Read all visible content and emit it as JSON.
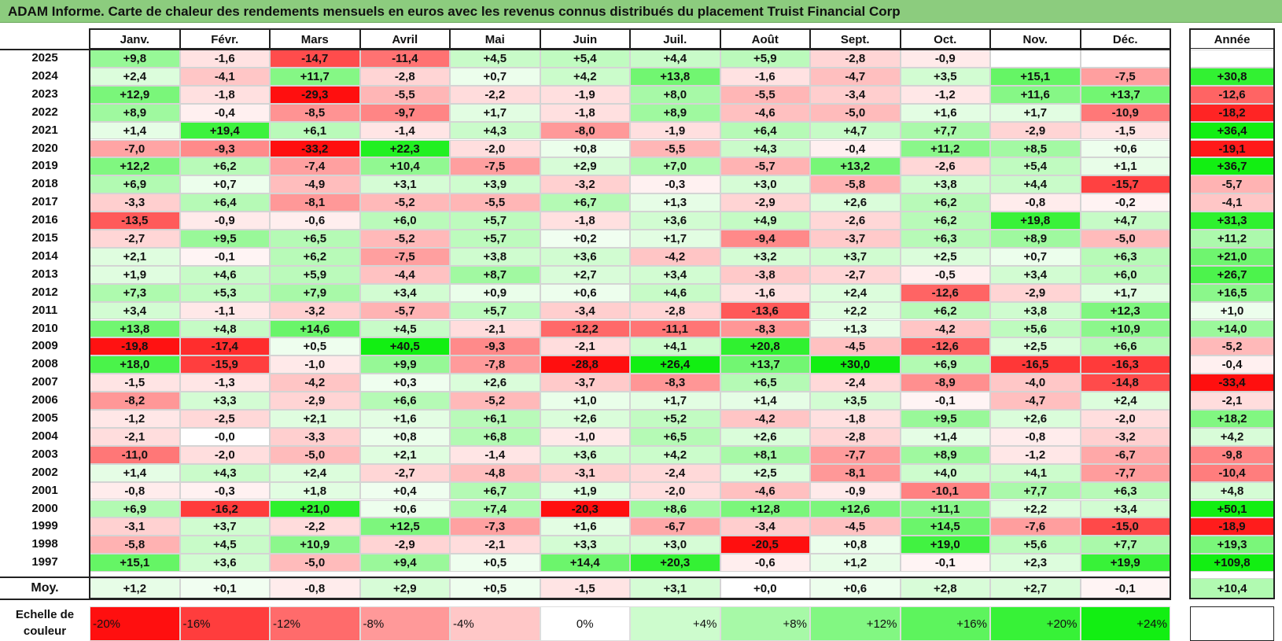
{
  "title": "ADAM Informe. Carte de chaleur des rendements mensuels en euros avec les revenus connus distribués du placement Truist Financial Corp",
  "chart_data": {
    "type": "heatmap",
    "columns": [
      "Janv.",
      "Févr.",
      "Mars",
      "Avril",
      "Mai",
      "Juin",
      "Juil.",
      "Août",
      "Sept.",
      "Oct.",
      "Nov.",
      "Déc."
    ],
    "year_column_label": "Année",
    "rows": [
      {
        "year": "2025",
        "values": [
          9.8,
          -1.6,
          -14.7,
          -11.4,
          4.5,
          5.4,
          4.4,
          5.9,
          -2.8,
          -0.9,
          null,
          null
        ],
        "annual": null
      },
      {
        "year": "2024",
        "values": [
          2.4,
          -4.1,
          11.7,
          -2.8,
          0.7,
          4.2,
          13.8,
          -1.6,
          -4.7,
          3.5,
          15.1,
          -7.5
        ],
        "annual": 30.8
      },
      {
        "year": "2023",
        "values": [
          12.9,
          -1.8,
          -29.3,
          -5.5,
          -2.2,
          -1.9,
          8.0,
          -5.5,
          -3.4,
          -1.2,
          11.6,
          13.7
        ],
        "annual": -12.6
      },
      {
        "year": "2022",
        "values": [
          8.9,
          -0.4,
          -8.5,
          -9.7,
          1.7,
          -1.8,
          8.9,
          -4.6,
          -5.0,
          1.6,
          1.7,
          -10.9
        ],
        "annual": -18.2
      },
      {
        "year": "2021",
        "values": [
          1.4,
          19.4,
          6.1,
          -1.4,
          4.3,
          -8.0,
          -1.9,
          6.4,
          4.7,
          7.7,
          -2.9,
          -1.5
        ],
        "annual": 36.4
      },
      {
        "year": "2020",
        "values": [
          -7.0,
          -9.3,
          -33.2,
          22.3,
          -2.0,
          0.8,
          -5.5,
          4.3,
          -0.4,
          11.2,
          8.5,
          0.6
        ],
        "annual": -19.1
      },
      {
        "year": "2019",
        "values": [
          12.2,
          6.2,
          -7.4,
          10.4,
          -7.5,
          2.9,
          7.0,
          -5.7,
          13.2,
          -2.6,
          5.4,
          1.1
        ],
        "annual": 36.7
      },
      {
        "year": "2018",
        "values": [
          6.9,
          0.7,
          -4.9,
          3.1,
          3.9,
          -3.2,
          -0.3,
          3.0,
          -5.8,
          3.8,
          4.4,
          -15.7
        ],
        "annual": -5.7
      },
      {
        "year": "2017",
        "values": [
          -3.3,
          6.4,
          -8.1,
          -5.2,
          -5.5,
          6.7,
          1.3,
          -2.9,
          2.6,
          6.2,
          -0.8,
          -0.2
        ],
        "annual": -4.1
      },
      {
        "year": "2016",
        "values": [
          -13.5,
          -0.9,
          -0.6,
          6.0,
          5.7,
          -1.8,
          3.6,
          4.9,
          -2.6,
          6.2,
          19.8,
          4.7
        ],
        "annual": 31.3
      },
      {
        "year": "2015",
        "values": [
          -2.7,
          9.5,
          6.5,
          -5.2,
          5.7,
          0.2,
          1.7,
          -9.4,
          -3.7,
          6.3,
          8.9,
          -5.0
        ],
        "annual": 11.2
      },
      {
        "year": "2014",
        "values": [
          2.1,
          -0.1,
          6.2,
          -7.5,
          3.8,
          3.6,
          -4.2,
          3.2,
          3.7,
          2.5,
          0.7,
          6.3
        ],
        "annual": 21.0
      },
      {
        "year": "2013",
        "values": [
          1.9,
          4.6,
          5.9,
          -4.4,
          8.7,
          2.7,
          3.4,
          -3.8,
          -2.7,
          -0.5,
          3.4,
          6.0
        ],
        "annual": 26.7
      },
      {
        "year": "2012",
        "values": [
          7.3,
          5.3,
          7.9,
          3.4,
          0.9,
          0.6,
          4.6,
          -1.6,
          2.4,
          -12.6,
          -2.9,
          1.7
        ],
        "annual": 16.5
      },
      {
        "year": "2011",
        "values": [
          3.4,
          -1.1,
          -3.2,
          -5.7,
          5.7,
          -3.4,
          -2.8,
          -13.6,
          2.2,
          6.2,
          3.8,
          12.3
        ],
        "annual": 1.0
      },
      {
        "year": "2010",
        "values": [
          13.8,
          4.8,
          14.6,
          4.5,
          -2.1,
          -12.2,
          -11.1,
          -8.3,
          1.3,
          -4.2,
          5.6,
          10.9
        ],
        "annual": 14.0
      },
      {
        "year": "2009",
        "values": [
          -19.8,
          -17.4,
          0.5,
          40.5,
          -9.3,
          -2.1,
          4.1,
          20.8,
          -4.5,
          -12.6,
          2.5,
          6.6
        ],
        "annual": -5.2
      },
      {
        "year": "2008",
        "values": [
          18.0,
          -15.9,
          -1.0,
          9.9,
          -7.8,
          -28.8,
          26.4,
          13.7,
          30.0,
          6.9,
          -16.5,
          -16.3
        ],
        "annual": -0.4
      },
      {
        "year": "2007",
        "values": [
          -1.5,
          -1.3,
          -4.2,
          0.3,
          2.6,
          -3.7,
          -8.3,
          6.5,
          -2.4,
          -8.9,
          -4.0,
          -14.8
        ],
        "annual": -33.4
      },
      {
        "year": "2006",
        "values": [
          -8.2,
          3.3,
          -2.9,
          6.6,
          -5.2,
          1.0,
          1.7,
          1.4,
          3.5,
          -0.1,
          -4.7,
          2.4
        ],
        "annual": -2.1
      },
      {
        "year": "2005",
        "values": [
          -1.2,
          -2.5,
          2.1,
          1.6,
          6.1,
          2.6,
          5.2,
          -4.2,
          -1.8,
          9.5,
          2.6,
          -2.0
        ],
        "annual": 18.2
      },
      {
        "year": "2004",
        "values": [
          -2.1,
          -0.0,
          -3.3,
          0.8,
          6.8,
          -1.0,
          6.5,
          2.6,
          -2.8,
          1.4,
          -0.8,
          -3.2
        ],
        "annual": 4.2
      },
      {
        "year": "2003",
        "values": [
          -11.0,
          -2.0,
          -5.0,
          2.1,
          -1.4,
          3.6,
          4.2,
          8.1,
          -7.7,
          8.9,
          -1.2,
          -6.7
        ],
        "annual": -9.8
      },
      {
        "year": "2002",
        "values": [
          1.4,
          4.3,
          2.4,
          -2.7,
          -4.8,
          -3.1,
          -2.4,
          2.5,
          -8.1,
          4.0,
          4.1,
          -7.7
        ],
        "annual": -10.4
      },
      {
        "year": "2001",
        "values": [
          -0.8,
          -0.3,
          1.8,
          0.4,
          6.7,
          1.9,
          -2.0,
          -4.6,
          -0.9,
          -10.1,
          7.7,
          6.3
        ],
        "annual": 4.8
      },
      {
        "year": "2000",
        "values": [
          6.9,
          -16.2,
          21.0,
          0.6,
          7.4,
          -20.3,
          8.6,
          12.8,
          12.6,
          11.1,
          2.2,
          3.4
        ],
        "annual": 50.1
      },
      {
        "year": "1999",
        "values": [
          -3.1,
          3.7,
          -2.2,
          12.5,
          -7.3,
          1.6,
          -6.7,
          -3.4,
          -4.5,
          14.5,
          -7.6,
          -15.0
        ],
        "annual": -18.9
      },
      {
        "year": "1998",
        "values": [
          -5.8,
          4.5,
          10.9,
          -2.9,
          -2.1,
          3.3,
          3.0,
          -20.5,
          0.8,
          19.0,
          5.6,
          7.7
        ],
        "annual": 19.3
      },
      {
        "year": "1997",
        "values": [
          15.1,
          3.6,
          -5.0,
          9.4,
          0.5,
          14.4,
          20.3,
          -0.6,
          1.2,
          -0.1,
          2.3,
          19.9
        ],
        "annual": 109.8
      }
    ],
    "average": {
      "label": "Moy.",
      "values": [
        1.2,
        0.1,
        -0.8,
        2.9,
        0.5,
        -1.5,
        3.1,
        0.0,
        0.6,
        2.8,
        2.7,
        -0.1
      ],
      "annual": 10.4
    },
    "scale": {
      "label": "Echelle de couleur",
      "stops": [
        -20,
        -16,
        -12,
        -8,
        -4,
        0,
        4,
        8,
        12,
        16,
        20,
        24
      ],
      "labels": [
        "-20%",
        "-16%",
        "-12%",
        "-8%",
        "-4%",
        "0%",
        "+4%",
        "+8%",
        "+12%",
        "+16%",
        "+20%",
        "+24%"
      ]
    },
    "colors": {
      "negative": "#ff0000",
      "positive": "#00ee00",
      "neutral": "#ffffff"
    }
  }
}
